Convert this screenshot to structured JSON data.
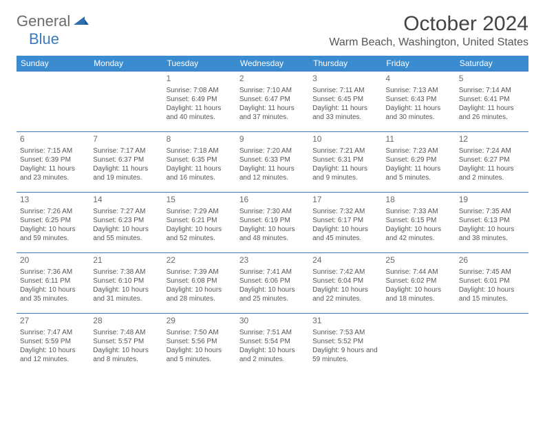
{
  "brand": {
    "word1": "General",
    "word2": "Blue",
    "word1_color": "#6b6b6b",
    "word2_color": "#2f6fb0",
    "mark_color": "#2f6fb0"
  },
  "header": {
    "title": "October 2024",
    "location": "Warm Beach, Washington, United States"
  },
  "colors": {
    "header_row_bg": "#3a8bd0",
    "header_row_text": "#ffffff",
    "week_border": "#3a7abd",
    "text": "#555555",
    "title": "#444444",
    "background": "#ffffff"
  },
  "weekdays": [
    "Sunday",
    "Monday",
    "Tuesday",
    "Wednesday",
    "Thursday",
    "Friday",
    "Saturday"
  ],
  "weeks": [
    [
      null,
      null,
      {
        "n": "1",
        "sunrise": "7:08 AM",
        "sunset": "6:49 PM",
        "daylight": "11 hours and 40 minutes."
      },
      {
        "n": "2",
        "sunrise": "7:10 AM",
        "sunset": "6:47 PM",
        "daylight": "11 hours and 37 minutes."
      },
      {
        "n": "3",
        "sunrise": "7:11 AM",
        "sunset": "6:45 PM",
        "daylight": "11 hours and 33 minutes."
      },
      {
        "n": "4",
        "sunrise": "7:13 AM",
        "sunset": "6:43 PM",
        "daylight": "11 hours and 30 minutes."
      },
      {
        "n": "5",
        "sunrise": "7:14 AM",
        "sunset": "6:41 PM",
        "daylight": "11 hours and 26 minutes."
      }
    ],
    [
      {
        "n": "6",
        "sunrise": "7:15 AM",
        "sunset": "6:39 PM",
        "daylight": "11 hours and 23 minutes."
      },
      {
        "n": "7",
        "sunrise": "7:17 AM",
        "sunset": "6:37 PM",
        "daylight": "11 hours and 19 minutes."
      },
      {
        "n": "8",
        "sunrise": "7:18 AM",
        "sunset": "6:35 PM",
        "daylight": "11 hours and 16 minutes."
      },
      {
        "n": "9",
        "sunrise": "7:20 AM",
        "sunset": "6:33 PM",
        "daylight": "11 hours and 12 minutes."
      },
      {
        "n": "10",
        "sunrise": "7:21 AM",
        "sunset": "6:31 PM",
        "daylight": "11 hours and 9 minutes."
      },
      {
        "n": "11",
        "sunrise": "7:23 AM",
        "sunset": "6:29 PM",
        "daylight": "11 hours and 5 minutes."
      },
      {
        "n": "12",
        "sunrise": "7:24 AM",
        "sunset": "6:27 PM",
        "daylight": "11 hours and 2 minutes."
      }
    ],
    [
      {
        "n": "13",
        "sunrise": "7:26 AM",
        "sunset": "6:25 PM",
        "daylight": "10 hours and 59 minutes."
      },
      {
        "n": "14",
        "sunrise": "7:27 AM",
        "sunset": "6:23 PM",
        "daylight": "10 hours and 55 minutes."
      },
      {
        "n": "15",
        "sunrise": "7:29 AM",
        "sunset": "6:21 PM",
        "daylight": "10 hours and 52 minutes."
      },
      {
        "n": "16",
        "sunrise": "7:30 AM",
        "sunset": "6:19 PM",
        "daylight": "10 hours and 48 minutes."
      },
      {
        "n": "17",
        "sunrise": "7:32 AM",
        "sunset": "6:17 PM",
        "daylight": "10 hours and 45 minutes."
      },
      {
        "n": "18",
        "sunrise": "7:33 AM",
        "sunset": "6:15 PM",
        "daylight": "10 hours and 42 minutes."
      },
      {
        "n": "19",
        "sunrise": "7:35 AM",
        "sunset": "6:13 PM",
        "daylight": "10 hours and 38 minutes."
      }
    ],
    [
      {
        "n": "20",
        "sunrise": "7:36 AM",
        "sunset": "6:11 PM",
        "daylight": "10 hours and 35 minutes."
      },
      {
        "n": "21",
        "sunrise": "7:38 AM",
        "sunset": "6:10 PM",
        "daylight": "10 hours and 31 minutes."
      },
      {
        "n": "22",
        "sunrise": "7:39 AM",
        "sunset": "6:08 PM",
        "daylight": "10 hours and 28 minutes."
      },
      {
        "n": "23",
        "sunrise": "7:41 AM",
        "sunset": "6:06 PM",
        "daylight": "10 hours and 25 minutes."
      },
      {
        "n": "24",
        "sunrise": "7:42 AM",
        "sunset": "6:04 PM",
        "daylight": "10 hours and 22 minutes."
      },
      {
        "n": "25",
        "sunrise": "7:44 AM",
        "sunset": "6:02 PM",
        "daylight": "10 hours and 18 minutes."
      },
      {
        "n": "26",
        "sunrise": "7:45 AM",
        "sunset": "6:01 PM",
        "daylight": "10 hours and 15 minutes."
      }
    ],
    [
      {
        "n": "27",
        "sunrise": "7:47 AM",
        "sunset": "5:59 PM",
        "daylight": "10 hours and 12 minutes."
      },
      {
        "n": "28",
        "sunrise": "7:48 AM",
        "sunset": "5:57 PM",
        "daylight": "10 hours and 8 minutes."
      },
      {
        "n": "29",
        "sunrise": "7:50 AM",
        "sunset": "5:56 PM",
        "daylight": "10 hours and 5 minutes."
      },
      {
        "n": "30",
        "sunrise": "7:51 AM",
        "sunset": "5:54 PM",
        "daylight": "10 hours and 2 minutes."
      },
      {
        "n": "31",
        "sunrise": "7:53 AM",
        "sunset": "5:52 PM",
        "daylight": "9 hours and 59 minutes."
      },
      null,
      null
    ]
  ],
  "labels": {
    "sunrise": "Sunrise: ",
    "sunset": "Sunset: ",
    "daylight": "Daylight: "
  },
  "typography": {
    "title_fontsize": 30,
    "location_fontsize": 16,
    "weekday_fontsize": 12,
    "daynum_fontsize": 12,
    "cell_fontsize": 10
  }
}
